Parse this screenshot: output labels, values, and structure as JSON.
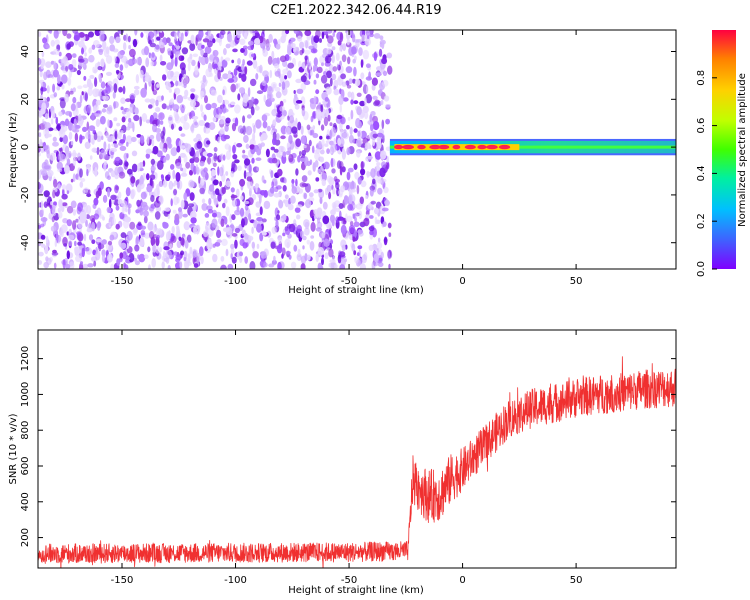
{
  "figure_title": "C2E1.2022.342.06.44.R19",
  "chart_data": [
    {
      "type": "heatmap",
      "title": "",
      "xlabel": "Height of straight line (km)",
      "ylabel": "Frequency (Hz)",
      "xlim": [
        -187,
        94
      ],
      "ylim": [
        -51,
        49
      ],
      "xticks": [
        -150,
        -100,
        -50,
        0,
        50
      ],
      "xtick_labels": [
        "-150",
        "-100",
        "-50",
        "0",
        "50"
      ],
      "yticks": [
        -40,
        -20,
        0,
        20,
        40
      ],
      "ytick_labels": [
        "-40",
        "-20",
        "0",
        "20",
        "40"
      ],
      "colormap": "rainbow",
      "noise_region_x": [
        -187,
        -32
      ],
      "signal_band": {
        "x_start": -32,
        "x_end": 94,
        "center_freq": 0,
        "half_width": 3
      },
      "high_amplitude_segment_x": [
        -30,
        25
      ],
      "colorbar": {
        "label": "Normalized spectral amplitude",
        "range": [
          0.0,
          1.0
        ],
        "ticks": [
          0.0,
          0.2,
          0.4,
          0.6,
          0.8
        ],
        "tick_labels": [
          "0.0",
          "0.2",
          "0.4",
          "0.6",
          "0.8"
        ],
        "colors": [
          "#8000ff",
          "#4060ff",
          "#00c0ff",
          "#00f0a0",
          "#40ff00",
          "#c0ff00",
          "#ffd000",
          "#ff8000",
          "#ff0040"
        ]
      }
    },
    {
      "type": "line",
      "title": "",
      "xlabel": "Height of straight line (km)",
      "ylabel": "SNR (10 * v/v)",
      "xlim": [
        -187,
        94
      ],
      "ylim": [
        30,
        1360
      ],
      "xticks": [
        -150,
        -100,
        -50,
        0,
        50
      ],
      "xtick_labels": [
        "-150",
        "-100",
        "-50",
        "0",
        "50"
      ],
      "yticks": [
        200,
        400,
        600,
        800,
        1000,
        1200
      ],
      "ytick_labels": [
        "200",
        "400",
        "600",
        "800",
        "1000",
        "1200"
      ],
      "color": "#f03030",
      "trend_x": [
        -187,
        -150,
        -100,
        -50,
        -24,
        -22,
        -15,
        -10,
        -5,
        0,
        10,
        20,
        30,
        40,
        50,
        60,
        70,
        80,
        94
      ],
      "trend_y": [
        110,
        112,
        115,
        118,
        125,
        520,
        430,
        440,
        530,
        580,
        720,
        860,
        920,
        950,
        980,
        1000,
        1010,
        1030,
        1040
      ],
      "noise_amplitude": [
        55,
        55,
        55,
        55,
        55,
        140,
        150,
        150,
        140,
        120,
        110,
        110,
        110,
        110,
        110,
        110,
        110,
        110,
        110
      ]
    }
  ]
}
